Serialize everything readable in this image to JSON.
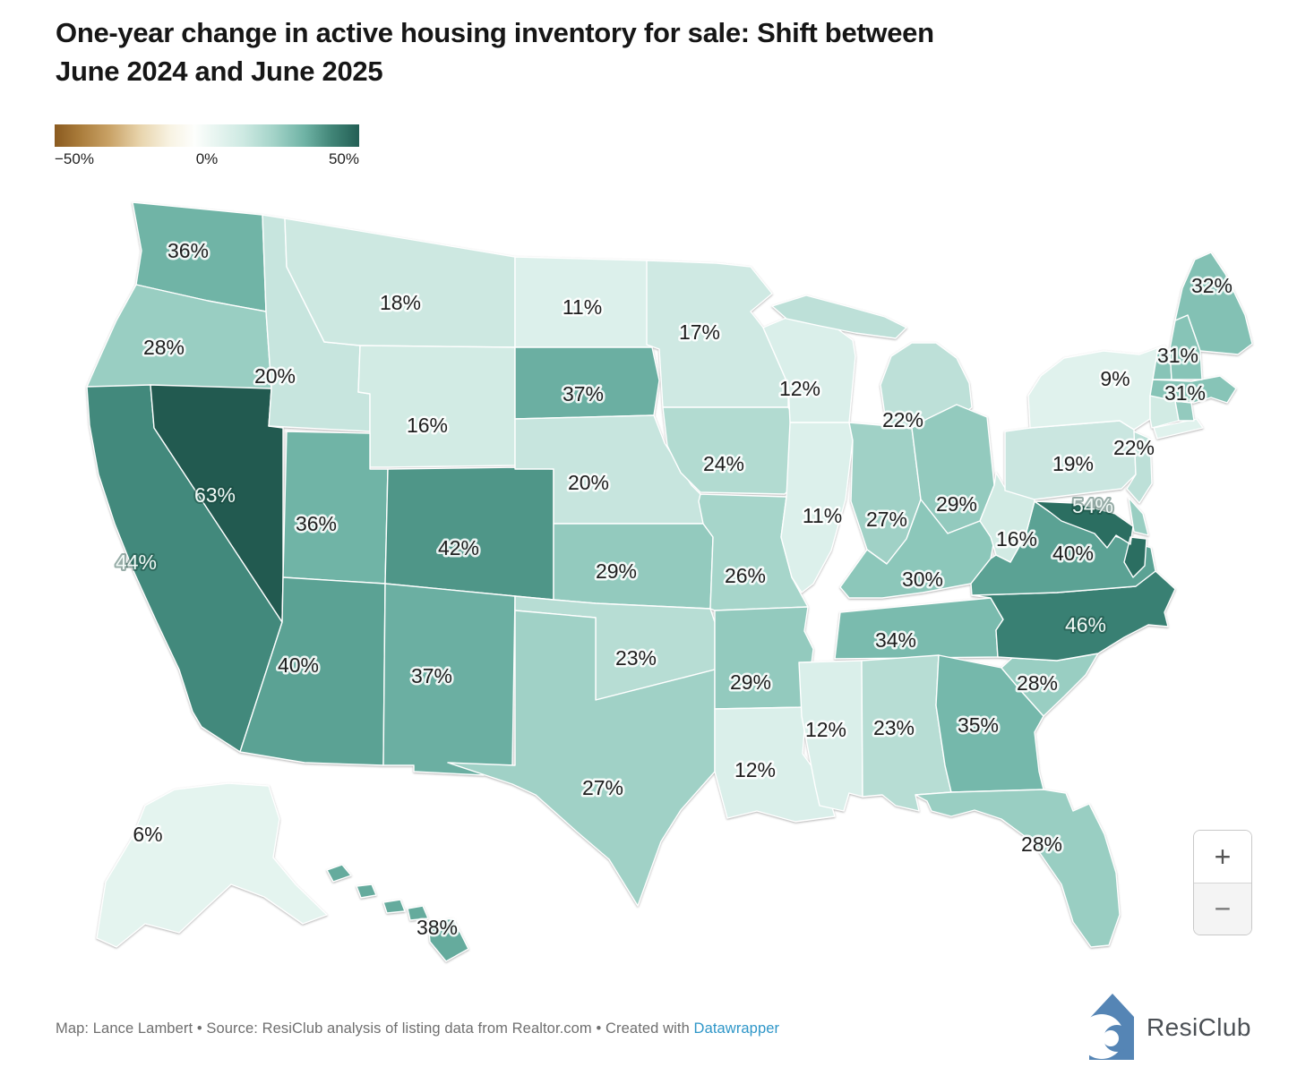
{
  "title": "One-year change in active housing inventory for sale: Shift between\nJune 2024 and June 2025",
  "legend": {
    "min_label": "−50%",
    "mid_label": "0%",
    "max_label": "50%"
  },
  "controls": {
    "zoom_in": "+",
    "zoom_out": "−"
  },
  "footer": {
    "prefix": "Map: Lance Lambert • Source: ResiClub analysis of listing data from Realtor.com • Created with ",
    "link_label": "Datawrapper",
    "brand": "ResiClub"
  },
  "chart_data": {
    "type": "choropleth",
    "region": "United States",
    "title": "One-year change in active housing inventory for sale: Shift between June 2024 and June 2025",
    "unit": "%",
    "legend": {
      "min": -50,
      "mid": 0,
      "max": 50
    },
    "color_scale": {
      "domain": [
        -50,
        0,
        50
      ],
      "colors": [
        "#8a5a20",
        "#fdfefc",
        "#235f55"
      ]
    },
    "states": [
      {
        "id": "WA",
        "name": "Washington",
        "value": 36,
        "label": "36%",
        "label_shown": true
      },
      {
        "id": "OR",
        "name": "Oregon",
        "value": 28,
        "label": "28%",
        "label_shown": true
      },
      {
        "id": "CA",
        "name": "California",
        "value": 44,
        "label": "44%",
        "label_shown": true
      },
      {
        "id": "NV",
        "name": "Nevada",
        "value": 63,
        "label": "63%",
        "label_shown": true
      },
      {
        "id": "ID",
        "name": "Idaho",
        "value": 20,
        "label": "20%",
        "label_shown": true
      },
      {
        "id": "MT",
        "name": "Montana",
        "value": 18,
        "label": "18%",
        "label_shown": true
      },
      {
        "id": "WY",
        "name": "Wyoming",
        "value": 16,
        "label": "16%",
        "label_shown": true
      },
      {
        "id": "UT",
        "name": "Utah",
        "value": 36,
        "label": "36%",
        "label_shown": true
      },
      {
        "id": "CO",
        "name": "Colorado",
        "value": 42,
        "label": "42%",
        "label_shown": true
      },
      {
        "id": "AZ",
        "name": "Arizona",
        "value": 40,
        "label": "40%",
        "label_shown": true
      },
      {
        "id": "NM",
        "name": "New Mexico",
        "value": 37,
        "label": "37%",
        "label_shown": true
      },
      {
        "id": "ND",
        "name": "North Dakota",
        "value": 11,
        "label": "11%",
        "label_shown": true
      },
      {
        "id": "SD",
        "name": "South Dakota",
        "value": 37,
        "label": "37%",
        "label_shown": true
      },
      {
        "id": "NE",
        "name": "Nebraska",
        "value": 20,
        "label": "20%",
        "label_shown": true
      },
      {
        "id": "KS",
        "name": "Kansas",
        "value": 29,
        "label": "29%",
        "label_shown": true
      },
      {
        "id": "OK",
        "name": "Oklahoma",
        "value": 23,
        "label": "23%",
        "label_shown": true
      },
      {
        "id": "TX",
        "name": "Texas",
        "value": 27,
        "label": "27%",
        "label_shown": true
      },
      {
        "id": "MN",
        "name": "Minnesota",
        "value": 17,
        "label": "17%",
        "label_shown": true
      },
      {
        "id": "IA",
        "name": "Iowa",
        "value": 24,
        "label": "24%",
        "label_shown": true
      },
      {
        "id": "MO",
        "name": "Missouri",
        "value": 26,
        "label": "26%",
        "label_shown": true
      },
      {
        "id": "AR",
        "name": "Arkansas",
        "value": 29,
        "label": "29%",
        "label_shown": true
      },
      {
        "id": "LA",
        "name": "Louisiana",
        "value": 12,
        "label": "12%",
        "label_shown": true
      },
      {
        "id": "WI",
        "name": "Wisconsin",
        "value": 12,
        "label": "12%",
        "label_shown": true
      },
      {
        "id": "IL",
        "name": "Illinois",
        "value": 11,
        "label": "11%",
        "label_shown": true
      },
      {
        "id": "IN",
        "name": "Indiana",
        "value": 27,
        "label": "27%",
        "label_shown": true
      },
      {
        "id": "MI",
        "name": "Michigan",
        "value": 22,
        "label": "22%",
        "label_shown": true
      },
      {
        "id": "OH",
        "name": "Ohio",
        "value": 29,
        "label": "29%",
        "label_shown": true
      },
      {
        "id": "KY",
        "name": "Kentucky",
        "value": 30,
        "label": "30%",
        "label_shown": true
      },
      {
        "id": "TN",
        "name": "Tennessee",
        "value": 34,
        "label": "34%",
        "label_shown": true
      },
      {
        "id": "MS",
        "name": "Mississippi",
        "value": 12,
        "label": "12%",
        "label_shown": true
      },
      {
        "id": "AL",
        "name": "Alabama",
        "value": 23,
        "label": "23%",
        "label_shown": true
      },
      {
        "id": "GA",
        "name": "Georgia",
        "value": 35,
        "label": "35%",
        "label_shown": true
      },
      {
        "id": "SC",
        "name": "South Carolina",
        "value": 28,
        "label": "28%",
        "label_shown": true
      },
      {
        "id": "NC",
        "name": "North Carolina",
        "value": 46,
        "label": "46%",
        "label_shown": true
      },
      {
        "id": "FL",
        "name": "Florida",
        "value": 28,
        "label": "28%",
        "label_shown": true
      },
      {
        "id": "VA",
        "name": "Virginia",
        "value": 40,
        "label": "40%",
        "label_shown": true
      },
      {
        "id": "WV",
        "name": "West Virginia",
        "value": 16,
        "label": "16%",
        "label_shown": true
      },
      {
        "id": "MD",
        "name": "Maryland",
        "value": 54,
        "label": "54%",
        "label_shown": true
      },
      {
        "id": "DE",
        "name": "Delaware",
        "value": 28,
        "label": "",
        "label_shown": false
      },
      {
        "id": "PA",
        "name": "Pennsylvania",
        "value": 19,
        "label": "19%",
        "label_shown": true
      },
      {
        "id": "NJ",
        "name": "New Jersey",
        "value": 22,
        "label": "22%",
        "label_shown": true
      },
      {
        "id": "NY",
        "name": "New York",
        "value": 9,
        "label": "9%",
        "label_shown": true
      },
      {
        "id": "CT",
        "name": "Connecticut",
        "value": 16,
        "label": "",
        "label_shown": false
      },
      {
        "id": "RI",
        "name": "Rhode Island",
        "value": 29,
        "label": "",
        "label_shown": false
      },
      {
        "id": "MA",
        "name": "Massachusetts",
        "value": 31,
        "label": "31%",
        "label_shown": true
      },
      {
        "id": "VT",
        "name": "Vermont",
        "value": 31,
        "label": "",
        "label_shown": false
      },
      {
        "id": "NH",
        "name": "New Hampshire",
        "value": 31,
        "label": "31%",
        "label_shown": true
      },
      {
        "id": "ME",
        "name": "Maine",
        "value": 32,
        "label": "32%",
        "label_shown": true
      },
      {
        "id": "AK",
        "name": "Alaska",
        "value": 6,
        "label": "6%",
        "label_shown": true
      },
      {
        "id": "HI",
        "name": "Hawaii",
        "value": 38,
        "label": "38%",
        "label_shown": true
      }
    ]
  }
}
